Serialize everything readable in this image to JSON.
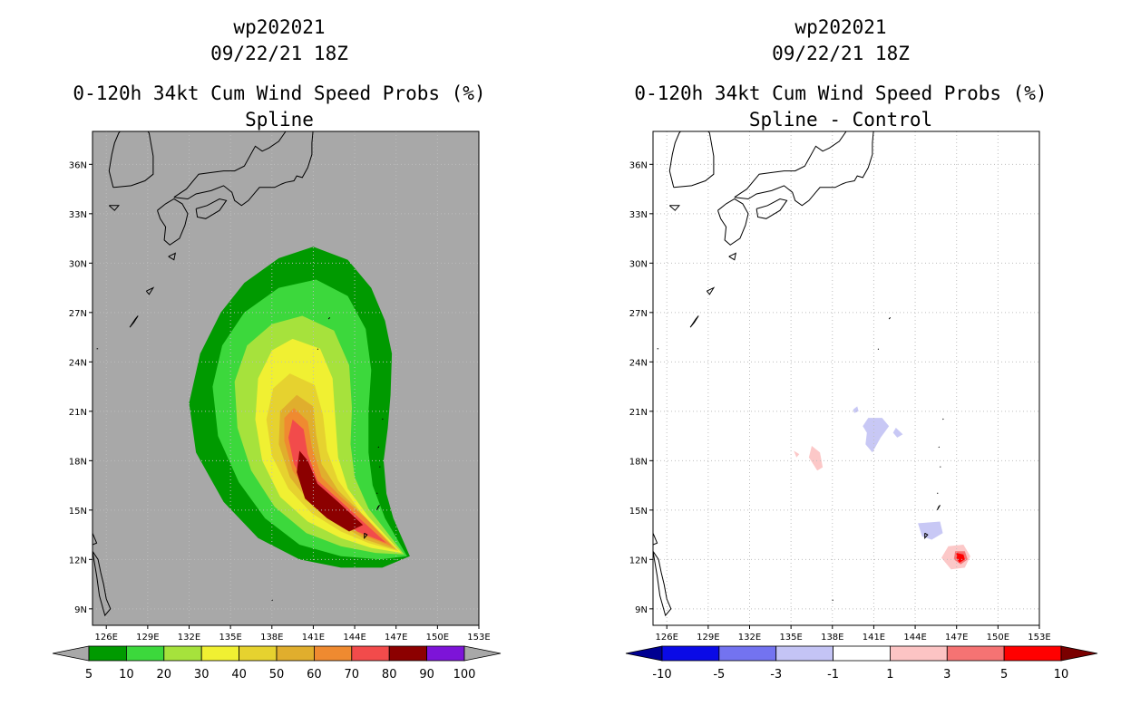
{
  "chart_data": [
    {
      "type": "heatmap",
      "storm_id": "wp202021",
      "datetime": "09/22/21 18Z",
      "title": "0-120h 34kt Cum Wind Speed Probs (%)",
      "subtitle": "Spline",
      "xlim": [
        125,
        153
      ],
      "ylim": [
        8,
        38
      ],
      "x_ticks": [
        "126E",
        "129E",
        "132E",
        "135E",
        "138E",
        "141E",
        "144E",
        "147E",
        "150E",
        "153E"
      ],
      "y_ticks": [
        "9N",
        "12N",
        "15N",
        "18N",
        "21N",
        "24N",
        "27N",
        "30N",
        "33N",
        "36N"
      ],
      "grid": true,
      "background_color": "#a8a8a8",
      "colorbar": {
        "levels": [
          "5",
          "10",
          "20",
          "30",
          "40",
          "50",
          "60",
          "70",
          "80",
          "90",
          "100"
        ],
        "colors": [
          "#009a00",
          "#3cd83c",
          "#a6e23c",
          "#f0f032",
          "#e6d22f",
          "#e0ae2d",
          "#ef8a30",
          "#f24b4b",
          "#8c0000",
          "#7d14d8"
        ],
        "under_color": "#a8a8a8",
        "over_color": "#a8a8a8"
      },
      "contours": [
        {
          "min": 5,
          "color": "#009a00",
          "points": [
            [
              141.0,
              31.0
            ],
            [
              143.5,
              30.2
            ],
            [
              145.2,
              28.5
            ],
            [
              146.2,
              26.5
            ],
            [
              146.7,
              24.5
            ],
            [
              146.6,
              22.0
            ],
            [
              146.4,
              20.0
            ],
            [
              146.1,
              18.0
            ],
            [
              146.3,
              16.0
            ],
            [
              146.8,
              14.5
            ],
            [
              148.0,
              12.2
            ],
            [
              146.0,
              11.5
            ],
            [
              143.0,
              11.5
            ],
            [
              140.0,
              12.0
            ],
            [
              137.0,
              13.3
            ],
            [
              134.5,
              15.5
            ],
            [
              132.5,
              18.5
            ],
            [
              132.0,
              21.5
            ],
            [
              132.8,
              24.5
            ],
            [
              134.3,
              27.0
            ],
            [
              136.0,
              28.8
            ],
            [
              138.5,
              30.3
            ]
          ]
        },
        {
          "min": 10,
          "color": "#3cd83c",
          "points": [
            [
              141.2,
              29.0
            ],
            [
              143.5,
              28.0
            ],
            [
              144.8,
              26.0
            ],
            [
              145.2,
              23.5
            ],
            [
              145.0,
              21.0
            ],
            [
              145.0,
              18.5
            ],
            [
              145.3,
              16.5
            ],
            [
              146.2,
              14.5
            ],
            [
              147.8,
              12.2
            ],
            [
              145.8,
              12.0
            ],
            [
              143.0,
              12.2
            ],
            [
              140.0,
              12.9
            ],
            [
              137.5,
              14.5
            ],
            [
              135.6,
              16.7
            ],
            [
              134.1,
              19.5
            ],
            [
              133.7,
              22.5
            ],
            [
              134.4,
              25.0
            ],
            [
              136.0,
              27.0
            ],
            [
              138.5,
              28.5
            ]
          ]
        },
        {
          "min": 20,
          "color": "#a6e23c",
          "points": [
            [
              140.2,
              26.8
            ],
            [
              142.5,
              25.9
            ],
            [
              143.6,
              23.8
            ],
            [
              143.8,
              21.2
            ],
            [
              143.7,
              19.0
            ],
            [
              144.0,
              17.0
            ],
            [
              145.0,
              15.1
            ],
            [
              147.6,
              12.3
            ],
            [
              145.5,
              12.4
            ],
            [
              143.0,
              12.8
            ],
            [
              140.5,
              13.6
            ],
            [
              138.2,
              15.2
            ],
            [
              136.5,
              17.4
            ],
            [
              135.5,
              20.0
            ],
            [
              135.3,
              22.8
            ],
            [
              136.2,
              25.0
            ],
            [
              138.0,
              26.3
            ]
          ]
        },
        {
          "min": 30,
          "color": "#f0f032",
          "points": [
            [
              139.5,
              25.4
            ],
            [
              141.5,
              24.8
            ],
            [
              142.4,
              23.0
            ],
            [
              142.6,
              20.5
            ],
            [
              142.8,
              18.2
            ],
            [
              143.5,
              16.3
            ],
            [
              145.0,
              14.6
            ],
            [
              147.4,
              12.4
            ],
            [
              145.2,
              12.7
            ],
            [
              143.0,
              13.3
            ],
            [
              140.6,
              14.3
            ],
            [
              138.6,
              15.8
            ],
            [
              137.3,
              18.0
            ],
            [
              136.8,
              20.5
            ],
            [
              137.0,
              23.0
            ],
            [
              138.0,
              24.7
            ]
          ]
        },
        {
          "min": 40,
          "color": "#e6d22f",
          "points": [
            [
              139.3,
              23.3
            ],
            [
              141.1,
              22.6
            ],
            [
              141.7,
              20.8
            ],
            [
              142.0,
              18.6
            ],
            [
              142.8,
              16.8
            ],
            [
              144.5,
              14.8
            ],
            [
              147.2,
              12.5
            ],
            [
              145.0,
              13.0
            ],
            [
              143.0,
              13.7
            ],
            [
              140.9,
              14.8
            ],
            [
              139.2,
              16.3
            ],
            [
              138.0,
              18.3
            ],
            [
              137.6,
              20.5
            ],
            [
              138.1,
              22.4
            ]
          ]
        },
        {
          "min": 50,
          "color": "#e0ae2d",
          "points": [
            [
              139.8,
              22.0
            ],
            [
              141.0,
              21.3
            ],
            [
              141.2,
              19.6
            ],
            [
              141.6,
              17.8
            ],
            [
              142.8,
              16.2
            ],
            [
              144.5,
              14.8
            ],
            [
              147.0,
              12.6
            ],
            [
              144.8,
              13.2
            ],
            [
              142.8,
              14.2
            ],
            [
              140.8,
              15.4
            ],
            [
              139.3,
              17.0
            ],
            [
              138.5,
              19.0
            ],
            [
              138.6,
              21.0
            ]
          ]
        },
        {
          "min": 60,
          "color": "#ef8a30",
          "points": [
            [
              139.6,
              21.2
            ],
            [
              140.6,
              20.4
            ],
            [
              140.9,
              18.8
            ],
            [
              141.6,
              17.0
            ],
            [
              143.0,
              15.8
            ],
            [
              144.8,
              14.5
            ],
            [
              146.7,
              12.8
            ],
            [
              144.5,
              13.5
            ],
            [
              142.5,
              14.6
            ],
            [
              140.8,
              15.8
            ],
            [
              139.5,
              17.4
            ],
            [
              138.9,
              19.2
            ],
            [
              138.9,
              20.6
            ]
          ]
        },
        {
          "min": 70,
          "color": "#f24b4b",
          "points": [
            [
              139.5,
              20.5
            ],
            [
              140.3,
              19.9
            ],
            [
              140.6,
              18.4
            ],
            [
              141.3,
              16.8
            ],
            [
              142.9,
              15.6
            ],
            [
              144.6,
              14.3
            ],
            [
              146.3,
              13.0
            ],
            [
              144.2,
              13.7
            ],
            [
              142.3,
              14.9
            ],
            [
              140.7,
              16.2
            ],
            [
              139.6,
              17.8
            ],
            [
              139.2,
              19.4
            ]
          ]
        },
        {
          "min": 80,
          "color": "#8c0000",
          "points": [
            [
              140.0,
              18.6
            ],
            [
              140.6,
              18.0
            ],
            [
              141.3,
              16.6
            ],
            [
              142.8,
              15.5
            ],
            [
              144.6,
              14.1
            ],
            [
              143.6,
              13.7
            ],
            [
              142.0,
              14.5
            ],
            [
              140.4,
              15.7
            ],
            [
              139.8,
              17.3
            ]
          ]
        }
      ]
    },
    {
      "type": "heatmap",
      "storm_id": "wp202021",
      "datetime": "09/22/21 18Z",
      "title": "0-120h 34kt Cum Wind Speed Probs (%)",
      "subtitle": "Spline - Control",
      "xlim": [
        125,
        153
      ],
      "ylim": [
        8,
        38
      ],
      "x_ticks": [
        "126E",
        "129E",
        "132E",
        "135E",
        "138E",
        "141E",
        "144E",
        "147E",
        "150E",
        "153E"
      ],
      "y_ticks": [
        "9N",
        "12N",
        "15N",
        "18N",
        "21N",
        "24N",
        "27N",
        "30N",
        "33N",
        "36N"
      ],
      "grid": true,
      "background_color": "#ffffff",
      "colorbar": {
        "levels": [
          "-10",
          "-5",
          "-3",
          "-1",
          "1",
          "3",
          "5",
          "10"
        ],
        "colors": [
          "#0a0ae6",
          "#7373f0",
          "#c4c4f5",
          "#ffffff",
          "#fcc4c4",
          "#f57373",
          "#ff0000"
        ],
        "under_color": "#000091",
        "over_color": "#7a0000"
      },
      "contours": [
        {
          "min": -3,
          "color": "#c8c8f5",
          "points": [
            [
              140.6,
              20.6
            ],
            [
              141.6,
              20.6
            ],
            [
              142.1,
              20.1
            ],
            [
              141.5,
              19.4
            ],
            [
              140.9,
              18.5
            ],
            [
              140.4,
              19.0
            ],
            [
              140.5,
              19.7
            ],
            [
              140.2,
              20.1
            ]
          ]
        },
        {
          "min": -3,
          "color": "#c8c8f5",
          "points": [
            [
              142.6,
              20.0
            ],
            [
              143.1,
              19.6
            ],
            [
              142.7,
              19.4
            ],
            [
              142.4,
              19.7
            ]
          ]
        },
        {
          "min": -3,
          "color": "#c8c8f5",
          "points": [
            [
              139.5,
              21.1
            ],
            [
              139.8,
              21.3
            ],
            [
              139.9,
              21.0
            ],
            [
              139.6,
              20.9
            ]
          ]
        },
        {
          "min": -3,
          "color": "#c8c8f5",
          "points": [
            [
              144.2,
              14.2
            ],
            [
              145.8,
              14.3
            ],
            [
              146.0,
              13.6
            ],
            [
              145.2,
              13.2
            ],
            [
              144.5,
              13.4
            ]
          ]
        },
        {
          "min": 1,
          "color": "#fcc8c8",
          "points": [
            [
              136.5,
              18.9
            ],
            [
              137.1,
              18.5
            ],
            [
              137.3,
              17.6
            ],
            [
              136.9,
              17.4
            ],
            [
              136.3,
              18.2
            ]
          ]
        },
        {
          "min": 1,
          "color": "#fcc8c8",
          "points": [
            [
              135.2,
              18.6
            ],
            [
              135.6,
              18.4
            ],
            [
              135.4,
              18.2
            ]
          ]
        },
        {
          "min": 1,
          "color": "#fcc8c8",
          "points": [
            [
              146.4,
              12.8
            ],
            [
              147.5,
              12.9
            ],
            [
              148.0,
              12.2
            ],
            [
              147.6,
              11.5
            ],
            [
              146.6,
              11.4
            ],
            [
              145.9,
              12.1
            ]
          ]
        },
        {
          "min": 3,
          "color": "#f57373",
          "points": [
            [
              146.9,
              12.5
            ],
            [
              147.6,
              12.5
            ],
            [
              147.8,
              12.0
            ],
            [
              147.3,
              11.7
            ],
            [
              146.8,
              12.0
            ]
          ]
        },
        {
          "min": 5,
          "color": "#ff0000",
          "points": [
            [
              147.0,
              12.4
            ],
            [
              147.5,
              12.3
            ],
            [
              147.6,
              12.0
            ],
            [
              147.2,
              11.8
            ],
            [
              147.0,
              12.1
            ]
          ]
        }
      ]
    }
  ]
}
